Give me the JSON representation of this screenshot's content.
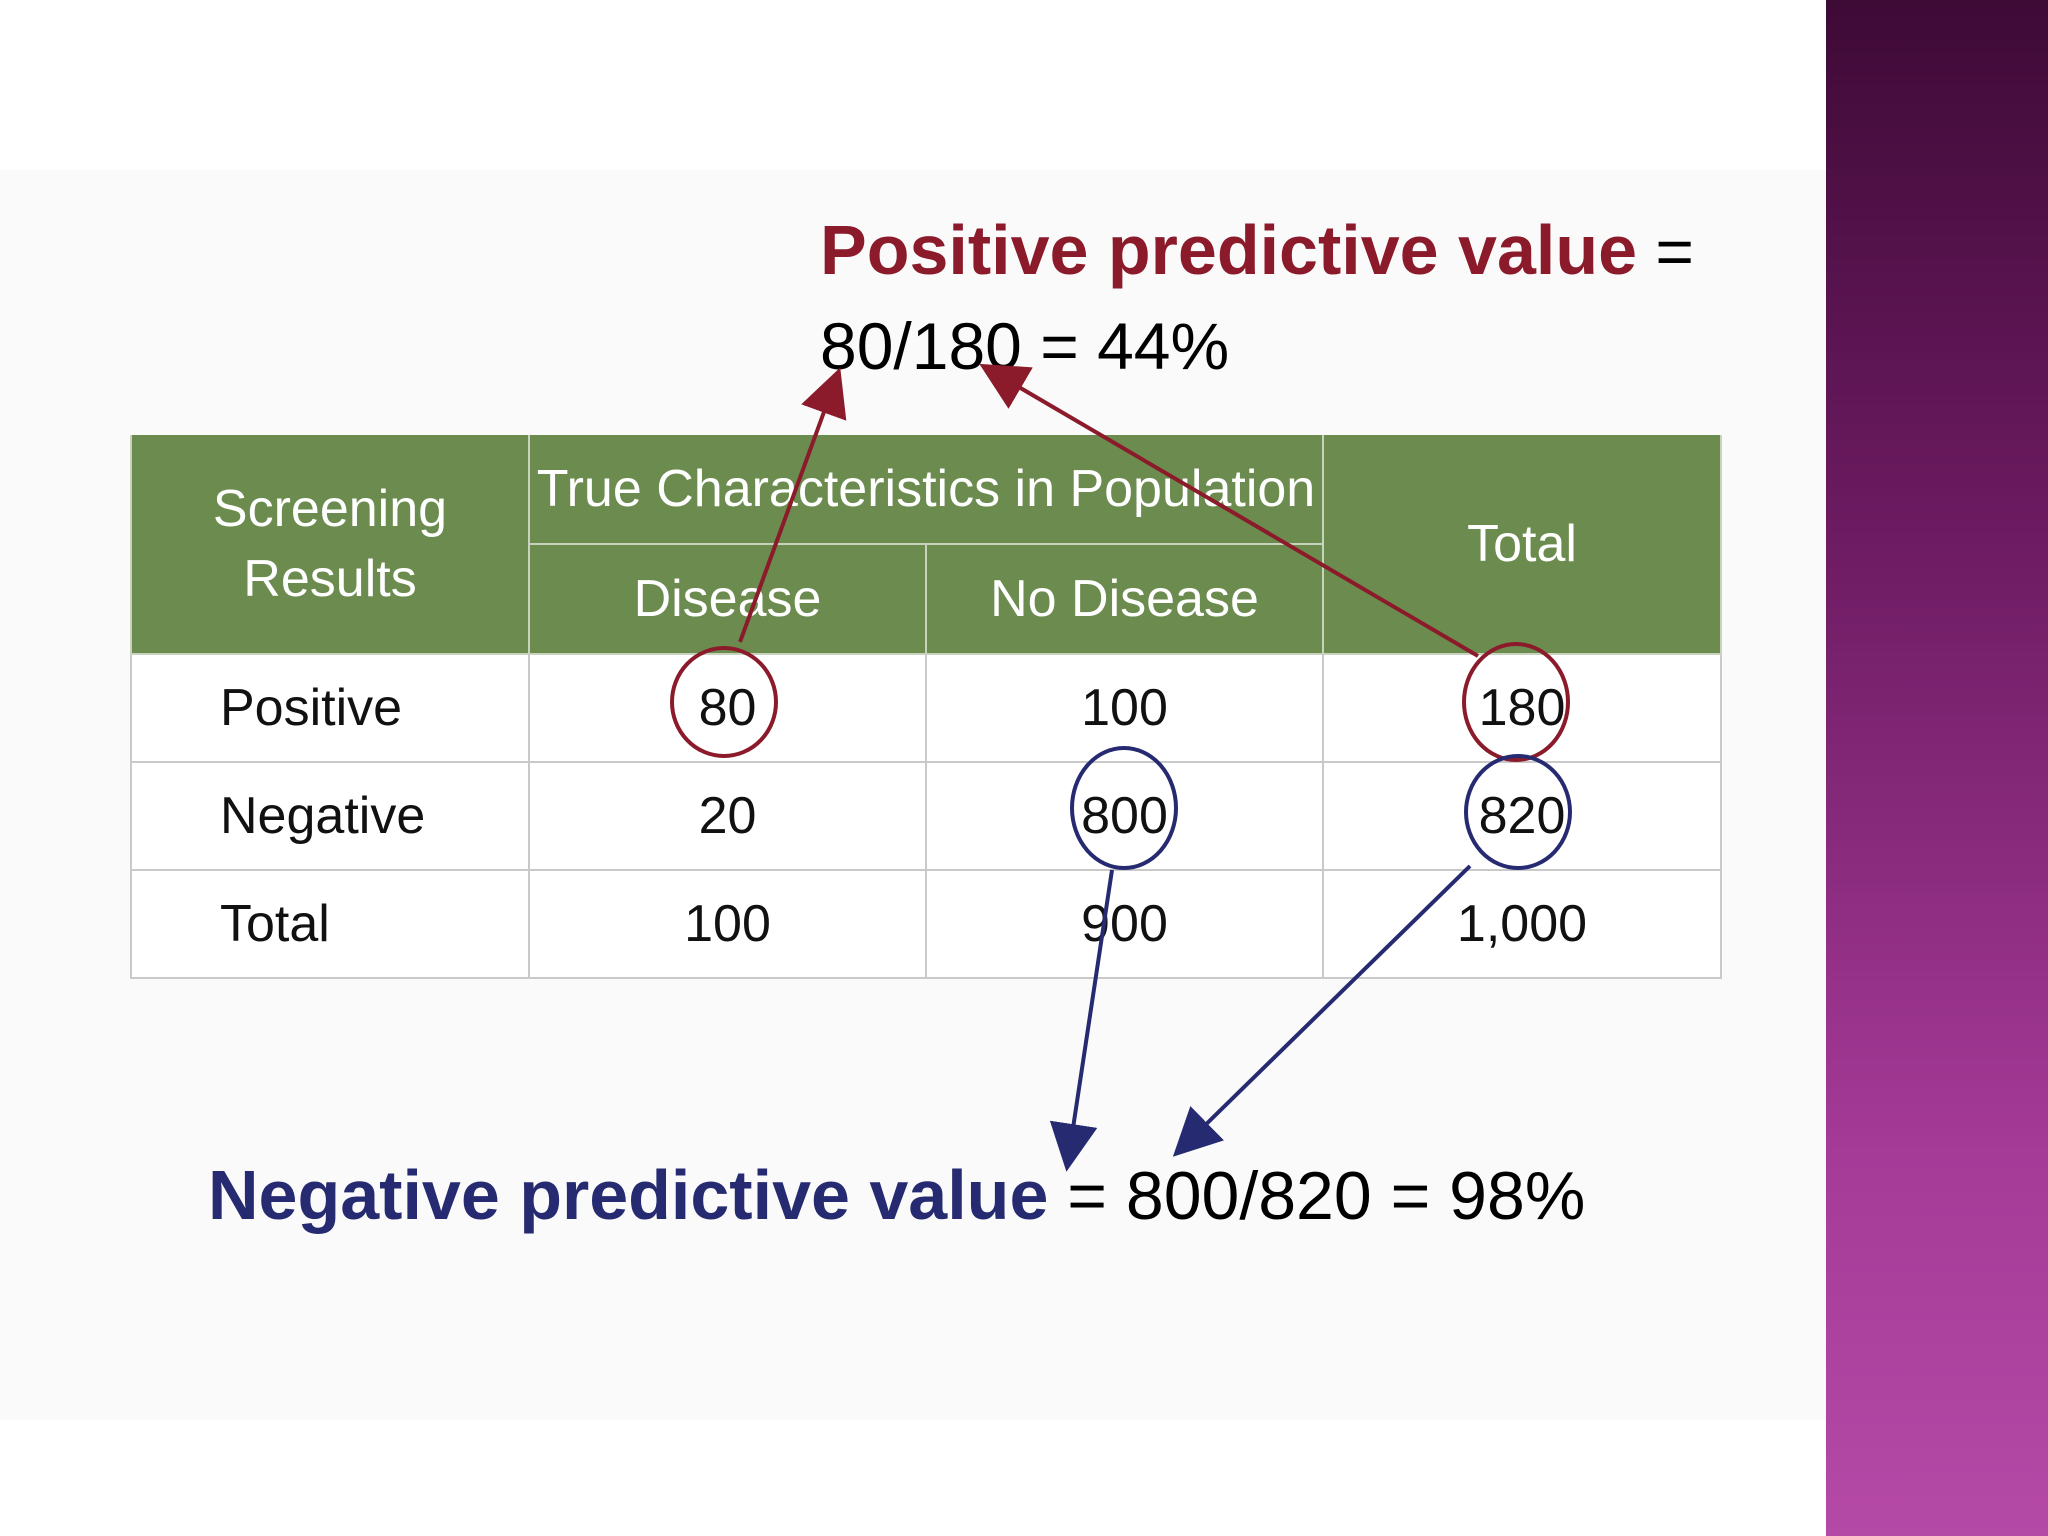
{
  "ppv": {
    "label": "Positive predictive value",
    "equals": " =",
    "formula": "80/180 = 44%"
  },
  "npv": {
    "label": "Negative predictive value",
    "formula": " = 800/820 = 98%"
  },
  "table": {
    "corner_header": "Screening Results",
    "group_header": "True Characteristics in Population",
    "disease_header": "Disease",
    "no_disease_header": "No Disease",
    "total_header": "Total",
    "rows": [
      {
        "label": "Positive",
        "disease": "80",
        "no_disease": "100",
        "total": "180"
      },
      {
        "label": "Negative",
        "disease": "20",
        "no_disease": "800",
        "total": "820"
      },
      {
        "label": "Total",
        "disease": "100",
        "no_disease": "900",
        "total": "1,000"
      }
    ]
  },
  "colors": {
    "ppv_accent": "#8b1b2a",
    "npv_accent": "#262a70",
    "header_green": "#6c8c4f",
    "sidebar_purple": "#a53a97"
  }
}
